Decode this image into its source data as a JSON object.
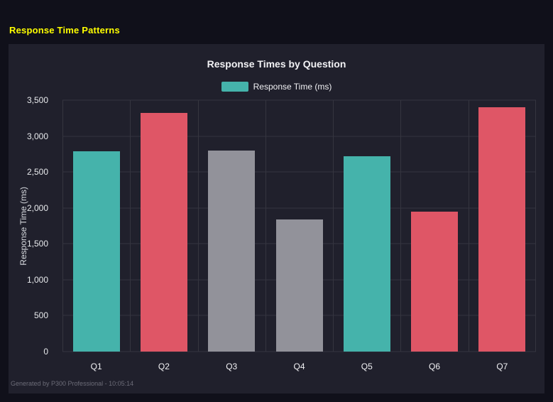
{
  "page": {
    "title": "Response Time Patterns",
    "footer": "Generated by P300 Professional - 10:05:14"
  },
  "chart_data": {
    "type": "bar",
    "title": "Response Times by Question",
    "legend": {
      "label": "Response Time (ms)",
      "color": "#45b3ab"
    },
    "categories": [
      "Q1",
      "Q2",
      "Q3",
      "Q4",
      "Q5",
      "Q6",
      "Q7"
    ],
    "values": [
      2790,
      3320,
      2800,
      1840,
      2720,
      1950,
      3400
    ],
    "bar_colors": [
      "#45b3ab",
      "#df5666",
      "#92929a",
      "#92929a",
      "#45b3ab",
      "#df5666",
      "#df5666"
    ],
    "xlabel": "",
    "ylabel": "Response Time (ms)",
    "ylim": [
      0,
      3500
    ],
    "yticks": [
      0,
      500,
      1000,
      1500,
      2000,
      2500,
      3000,
      3500
    ],
    "ytick_labels": [
      "0",
      "500",
      "1,000",
      "1,500",
      "2,000",
      "2,500",
      "3,000",
      "3,500"
    ],
    "grid": true,
    "legend_position": "top"
  }
}
